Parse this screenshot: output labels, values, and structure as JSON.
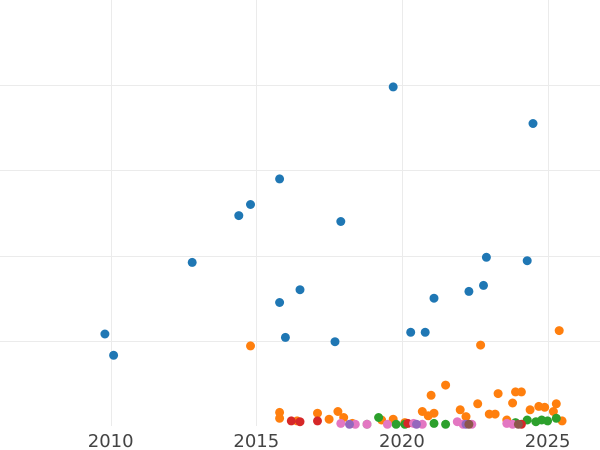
{
  "chart_data": {
    "type": "scatter",
    "title": "",
    "xlabel": "",
    "ylabel": "",
    "xlim": [
      2006.2,
      2026.8
    ],
    "ylim": [
      0,
      500
    ],
    "x_ticks": [
      2010,
      2015,
      2020,
      2025
    ],
    "y_gridlines": [
      100,
      200,
      300,
      400
    ],
    "grid": true,
    "series": [
      {
        "color": "#1f77b4",
        "points": [
          {
            "x": 2009.8,
            "y": 108
          },
          {
            "x": 2010.1,
            "y": 83
          },
          {
            "x": 2012.8,
            "y": 192
          },
          {
            "x": 2014.4,
            "y": 247
          },
          {
            "x": 2014.8,
            "y": 260
          },
          {
            "x": 2015.8,
            "y": 145
          },
          {
            "x": 2015.8,
            "y": 290
          },
          {
            "x": 2016.0,
            "y": 104
          },
          {
            "x": 2016.5,
            "y": 160
          },
          {
            "x": 2017.7,
            "y": 99
          },
          {
            "x": 2017.9,
            "y": 240
          },
          {
            "x": 2019.7,
            "y": 398
          },
          {
            "x": 2020.3,
            "y": 110
          },
          {
            "x": 2020.8,
            "y": 110
          },
          {
            "x": 2021.1,
            "y": 150
          },
          {
            "x": 2022.3,
            "y": 158
          },
          {
            "x": 2022.8,
            "y": 165
          },
          {
            "x": 2022.9,
            "y": 198
          },
          {
            "x": 2024.3,
            "y": 194
          },
          {
            "x": 2024.5,
            "y": 355
          }
        ]
      },
      {
        "color": "#ff7f0e",
        "points": [
          {
            "x": 2014.8,
            "y": 94
          },
          {
            "x": 2015.8,
            "y": 16
          },
          {
            "x": 2015.8,
            "y": 9
          },
          {
            "x": 2016.4,
            "y": 6
          },
          {
            "x": 2017.1,
            "y": 15
          },
          {
            "x": 2017.5,
            "y": 8
          },
          {
            "x": 2017.8,
            "y": 17
          },
          {
            "x": 2018.0,
            "y": 10
          },
          {
            "x": 2018.3,
            "y": 3
          },
          {
            "x": 2019.3,
            "y": 7
          },
          {
            "x": 2019.7,
            "y": 8
          },
          {
            "x": 2020.1,
            "y": 4
          },
          {
            "x": 2020.7,
            "y": 17
          },
          {
            "x": 2020.9,
            "y": 12
          },
          {
            "x": 2021.0,
            "y": 36
          },
          {
            "x": 2021.1,
            "y": 15
          },
          {
            "x": 2021.5,
            "y": 48
          },
          {
            "x": 2022.0,
            "y": 19
          },
          {
            "x": 2022.2,
            "y": 11
          },
          {
            "x": 2022.6,
            "y": 26
          },
          {
            "x": 2022.7,
            "y": 95
          },
          {
            "x": 2023.0,
            "y": 14
          },
          {
            "x": 2023.2,
            "y": 14
          },
          {
            "x": 2023.3,
            "y": 38
          },
          {
            "x": 2023.6,
            "y": 7
          },
          {
            "x": 2023.8,
            "y": 27
          },
          {
            "x": 2023.9,
            "y": 40
          },
          {
            "x": 2024.1,
            "y": 40
          },
          {
            "x": 2024.4,
            "y": 19
          },
          {
            "x": 2024.7,
            "y": 23
          },
          {
            "x": 2024.9,
            "y": 22
          },
          {
            "x": 2025.2,
            "y": 17
          },
          {
            "x": 2025.3,
            "y": 26
          },
          {
            "x": 2025.4,
            "y": 112
          },
          {
            "x": 2025.5,
            "y": 6
          }
        ]
      },
      {
        "color": "#2ca02c",
        "points": [
          {
            "x": 2018.8,
            "y": 2
          },
          {
            "x": 2019.2,
            "y": 10
          },
          {
            "x": 2019.8,
            "y": 2
          },
          {
            "x": 2020.1,
            "y": 2
          },
          {
            "x": 2021.1,
            "y": 3
          },
          {
            "x": 2021.5,
            "y": 2
          },
          {
            "x": 2023.9,
            "y": 4
          },
          {
            "x": 2024.3,
            "y": 7
          },
          {
            "x": 2024.6,
            "y": 5
          },
          {
            "x": 2024.8,
            "y": 7
          },
          {
            "x": 2025.0,
            "y": 6
          },
          {
            "x": 2025.3,
            "y": 9
          }
        ]
      },
      {
        "color": "#d62728",
        "points": [
          {
            "x": 2016.2,
            "y": 6
          },
          {
            "x": 2016.5,
            "y": 5
          },
          {
            "x": 2017.1,
            "y": 6
          },
          {
            "x": 2020.2,
            "y": 3
          },
          {
            "x": 2024.1,
            "y": 2
          }
        ]
      },
      {
        "color": "#e377c2",
        "points": [
          {
            "x": 2017.9,
            "y": 3
          },
          {
            "x": 2018.4,
            "y": 2
          },
          {
            "x": 2018.8,
            "y": 2
          },
          {
            "x": 2019.5,
            "y": 2
          },
          {
            "x": 2020.4,
            "y": 3
          },
          {
            "x": 2020.7,
            "y": 2
          },
          {
            "x": 2021.9,
            "y": 5
          },
          {
            "x": 2022.1,
            "y": 2
          },
          {
            "x": 2022.4,
            "y": 2
          },
          {
            "x": 2023.6,
            "y": 3
          },
          {
            "x": 2023.8,
            "y": 2
          }
        ]
      },
      {
        "color": "#9467bd",
        "points": [
          {
            "x": 2018.2,
            "y": 2
          },
          {
            "x": 2020.5,
            "y": 2
          },
          {
            "x": 2022.2,
            "y": 2
          }
        ]
      },
      {
        "color": "#8c564b",
        "points": [
          {
            "x": 2022.3,
            "y": 2
          },
          {
            "x": 2024.0,
            "y": 2
          }
        ]
      }
    ]
  }
}
